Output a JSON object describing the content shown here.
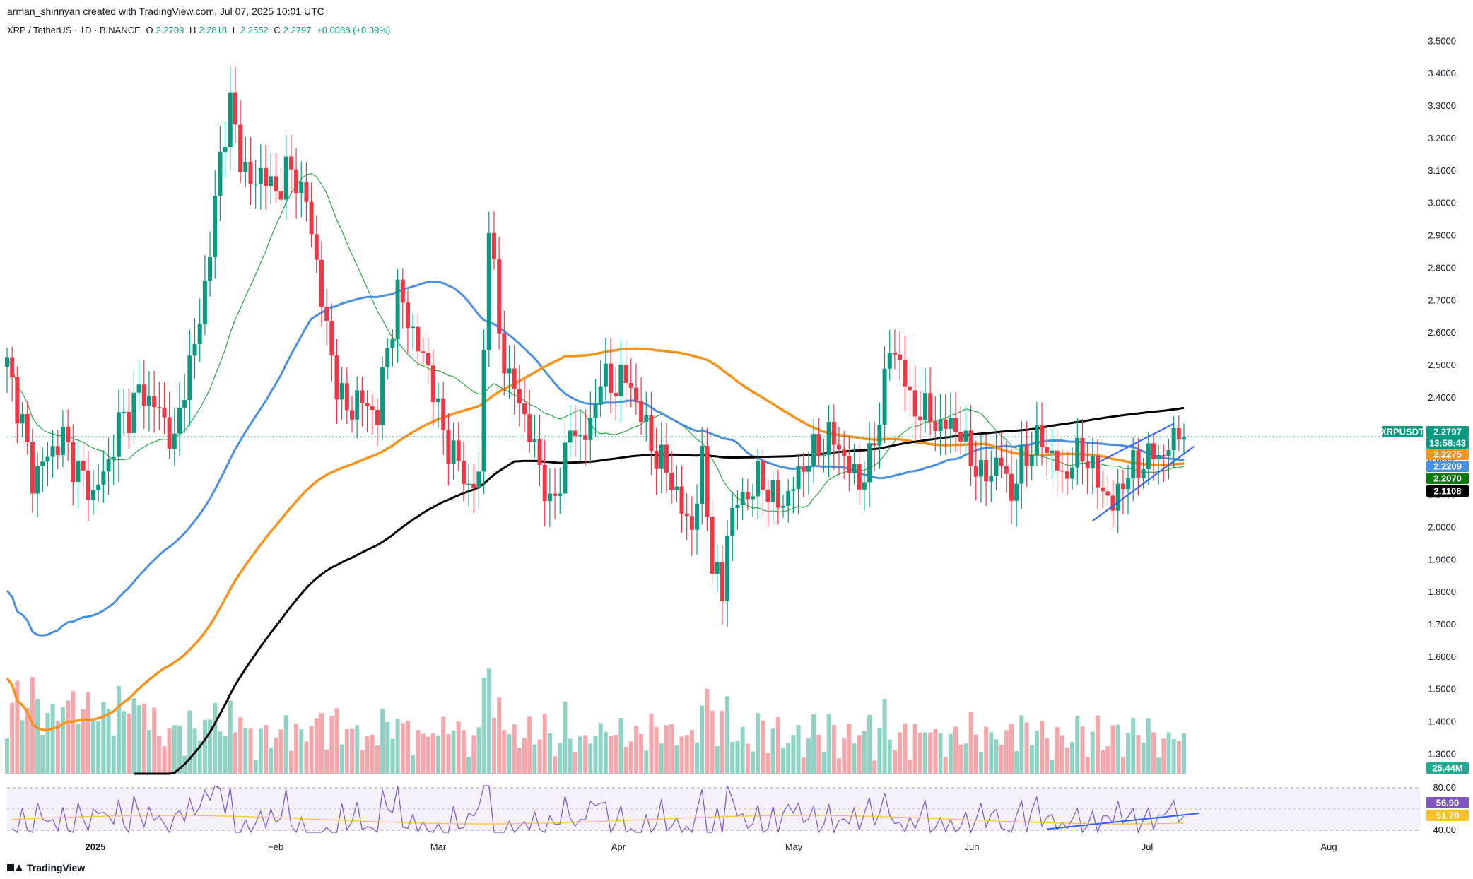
{
  "header": {
    "credit": "arman_shirinyan created with TradingView.com, Jul 07, 2025 10:01 UTC"
  },
  "legend": {
    "symbol": "XRP / TetherUS · 1D · BINANCE",
    "open_k": "O",
    "open": "2.2709",
    "high_k": "H",
    "high": "2.2818",
    "low_k": "L",
    "low": "2.2552",
    "close_k": "C",
    "close": "2.2797",
    "change": "+0.0088 (+0.39%)"
  },
  "price_badges": [
    {
      "text": "XRPUSDT",
      "color": "#089981"
    },
    {
      "text": "2.2797",
      "color": "#089981"
    },
    {
      "text": "13:58:43",
      "color": "#089981"
    },
    {
      "text": "2.2275",
      "color": "#f7931a"
    },
    {
      "text": "2.2209",
      "color": "#4a90e2"
    },
    {
      "text": "2.2070",
      "color": "#0a7a0a"
    },
    {
      "text": "2.1108",
      "color": "#000000"
    }
  ],
  "volume_badge": {
    "text": "25.44M",
    "color": "#22ab94"
  },
  "rsi_badges": [
    {
      "text": "56.90",
      "color": "#7e57c2"
    },
    {
      "text": "51.70",
      "color": "#fbc02d"
    }
  ],
  "colors": {
    "up": "#089981",
    "down": "#f23645",
    "vol_up": "#8fd3c5",
    "vol_down": "#f7a6ac",
    "ma_blue": "#4a90e2",
    "ma_orange": "#f7931a",
    "ma_green": "#27a844",
    "ma_black": "#000000",
    "rsi_line": "#7e57c2",
    "rsi_ma": "#fbc02d",
    "trend": "#2962ff"
  },
  "footer": {
    "brand": "TradingView"
  },
  "chart_data": {
    "type": "candlestick",
    "title": "XRP / TetherUS · 1D · BINANCE",
    "price_axis_ticks": [
      "3.5000",
      "3.4000",
      "3.3000",
      "3.2000",
      "3.1000",
      "3.0000",
      "2.9000",
      "2.8000",
      "2.7000",
      "2.6000",
      "2.5000",
      "2.4000",
      "2.3000",
      "2.2000",
      "2.1000",
      "2.0000",
      "1.9000",
      "1.8000",
      "1.7000",
      "1.6000",
      "1.5000",
      "1.4000",
      "1.3000"
    ],
    "ylim": [
      1.24,
      3.54
    ],
    "rsi_ticks": [
      "80.00",
      "40.00"
    ],
    "time_ticks": [
      "2025",
      "Feb",
      "Mar",
      "Apr",
      "May",
      "Jun",
      "Jul",
      "Aug"
    ],
    "anchors": [
      [
        0,
        2.5
      ],
      [
        3,
        2.32
      ],
      [
        5,
        2.15
      ],
      [
        8,
        2.22
      ],
      [
        11,
        2.28
      ],
      [
        13,
        2.2
      ],
      [
        15,
        2.15
      ],
      [
        17,
        2.1
      ],
      [
        20,
        2.2
      ],
      [
        22,
        2.32
      ],
      [
        24,
        2.35
      ],
      [
        26,
        2.42
      ],
      [
        29,
        2.38
      ],
      [
        31,
        2.33
      ],
      [
        33,
        2.25
      ],
      [
        35,
        2.45
      ],
      [
        37,
        2.55
      ],
      [
        40,
        2.85
      ],
      [
        42,
        3.15
      ],
      [
        44,
        3.3
      ],
      [
        46,
        3.15
      ],
      [
        48,
        3.05
      ],
      [
        50,
        3.1
      ],
      [
        53,
        3.03
      ],
      [
        55,
        3.1
      ],
      [
        57,
        3.08
      ],
      [
        59,
        3.0
      ],
      [
        61,
        2.82
      ],
      [
        63,
        2.6
      ],
      [
        65,
        2.45
      ],
      [
        67,
        2.35
      ],
      [
        69,
        2.4
      ],
      [
        71,
        2.37
      ],
      [
        73,
        2.35
      ],
      [
        75,
        2.55
      ],
      [
        77,
        2.72
      ],
      [
        79,
        2.65
      ],
      [
        81,
        2.55
      ],
      [
        83,
        2.5
      ],
      [
        85,
        2.35
      ],
      [
        87,
        2.25
      ],
      [
        89,
        2.2
      ],
      [
        91,
        2.12
      ],
      [
        93,
        2.15
      ],
      [
        95,
        2.95
      ],
      [
        97,
        2.6
      ],
      [
        99,
        2.45
      ],
      [
        101,
        2.4
      ],
      [
        103,
        2.28
      ],
      [
        105,
        2.2
      ],
      [
        107,
        2.05
      ],
      [
        109,
        2.15
      ],
      [
        111,
        2.3
      ],
      [
        113,
        2.28
      ],
      [
        115,
        2.3
      ],
      [
        117,
        2.48
      ],
      [
        119,
        2.42
      ],
      [
        121,
        2.47
      ],
      [
        123,
        2.43
      ],
      [
        125,
        2.35
      ],
      [
        127,
        2.25
      ],
      [
        129,
        2.2
      ],
      [
        131,
        2.15
      ],
      [
        133,
        2.05
      ],
      [
        135,
        2.0
      ],
      [
        137,
        2.2
      ],
      [
        139,
        1.9
      ],
      [
        141,
        1.78
      ],
      [
        142,
        2.0
      ],
      [
        144,
        2.08
      ],
      [
        146,
        2.1
      ],
      [
        148,
        2.15
      ],
      [
        150,
        2.12
      ],
      [
        152,
        2.07
      ],
      [
        154,
        2.1
      ],
      [
        156,
        2.16
      ],
      [
        158,
        2.22
      ],
      [
        160,
        2.24
      ],
      [
        162,
        2.28
      ],
      [
        164,
        2.25
      ],
      [
        166,
        2.18
      ],
      [
        168,
        2.14
      ],
      [
        170,
        2.2
      ],
      [
        172,
        2.35
      ],
      [
        174,
        2.55
      ],
      [
        176,
        2.52
      ],
      [
        178,
        2.38
      ],
      [
        180,
        2.36
      ],
      [
        182,
        2.35
      ],
      [
        184,
        2.3
      ],
      [
        186,
        2.33
      ],
      [
        188,
        2.28
      ],
      [
        190,
        2.22
      ],
      [
        192,
        2.15
      ],
      [
        194,
        2.18
      ],
      [
        196,
        2.2
      ],
      [
        198,
        2.1
      ],
      [
        200,
        2.2
      ],
      [
        202,
        2.25
      ],
      [
        204,
        2.27
      ],
      [
        206,
        2.22
      ],
      [
        208,
        2.15
      ],
      [
        210,
        2.2
      ],
      [
        212,
        2.24
      ],
      [
        214,
        2.17
      ],
      [
        216,
        2.12
      ],
      [
        218,
        2.06
      ],
      [
        220,
        2.15
      ],
      [
        222,
        2.18
      ],
      [
        224,
        2.2
      ],
      [
        226,
        2.23
      ],
      [
        228,
        2.22
      ],
      [
        230,
        2.27
      ],
      [
        231,
        2.2709
      ],
      [
        232,
        2.2797
      ]
    ],
    "ma_levels": {
      "ma_orange": 2.2275,
      "ma_blue": 2.2209,
      "ma_green": 2.207,
      "ma_black": 2.1108
    },
    "last_price": 2.2797
  }
}
